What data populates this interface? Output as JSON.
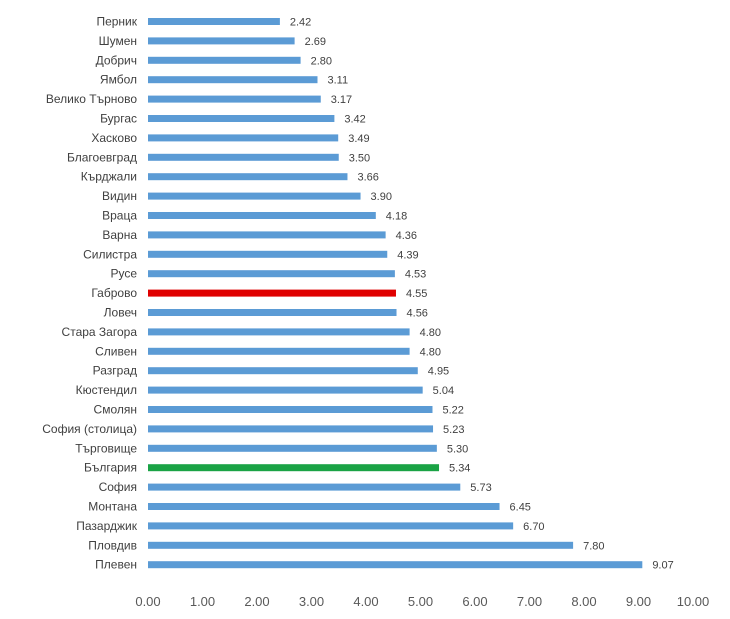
{
  "chart_data": {
    "type": "bar",
    "orientation": "horizontal",
    "title": "",
    "xlabel": "",
    "ylabel": "",
    "xlim": [
      0,
      10
    ],
    "x_ticks": [
      "0.00",
      "1.00",
      "2.00",
      "3.00",
      "4.00",
      "5.00",
      "6.00",
      "7.00",
      "8.00",
      "9.00",
      "10.00"
    ],
    "grid": false,
    "legend": "none",
    "colors": {
      "default": "#5b9bd5",
      "highlight_red": "#e00000",
      "highlight_green": "#1aa345"
    },
    "categories": [
      "Перник",
      "Шумен",
      "Добрич",
      "Ямбол",
      "Велико Търново",
      "Бургас",
      "Хасково",
      "Благоевград",
      "Кърджали",
      "Видин",
      "Враца",
      "Варна",
      "Силистра",
      "Русе",
      "Габрово",
      "Ловеч",
      "Стара Загора",
      "Сливен",
      "Разград",
      "Кюстендил",
      "Смолян",
      "София (столица)",
      "Търговище",
      "България",
      "София",
      "Монтана",
      "Пазарджик",
      "Пловдив",
      "Плевен"
    ],
    "values": [
      2.42,
      2.69,
      2.8,
      3.11,
      3.17,
      3.42,
      3.49,
      3.5,
      3.66,
      3.9,
      4.18,
      4.36,
      4.39,
      4.53,
      4.55,
      4.56,
      4.8,
      4.8,
      4.95,
      5.04,
      5.22,
      5.23,
      5.3,
      5.34,
      5.73,
      6.45,
      6.7,
      7.8,
      9.07
    ],
    "value_labels": [
      "2.42",
      "2.69",
      "2.80",
      "3.11",
      "3.17",
      "3.42",
      "3.49",
      "3.50",
      "3.66",
      "3.90",
      "4.18",
      "4.36",
      "4.39",
      "4.53",
      "4.55",
      "4.56",
      "4.80",
      "4.80",
      "4.95",
      "5.04",
      "5.22",
      "5.23",
      "5.30",
      "5.34",
      "5.73",
      "6.45",
      "6.70",
      "7.80",
      "9.07"
    ],
    "highlights": {
      "Габрово": "highlight_red",
      "България": "highlight_green"
    }
  }
}
